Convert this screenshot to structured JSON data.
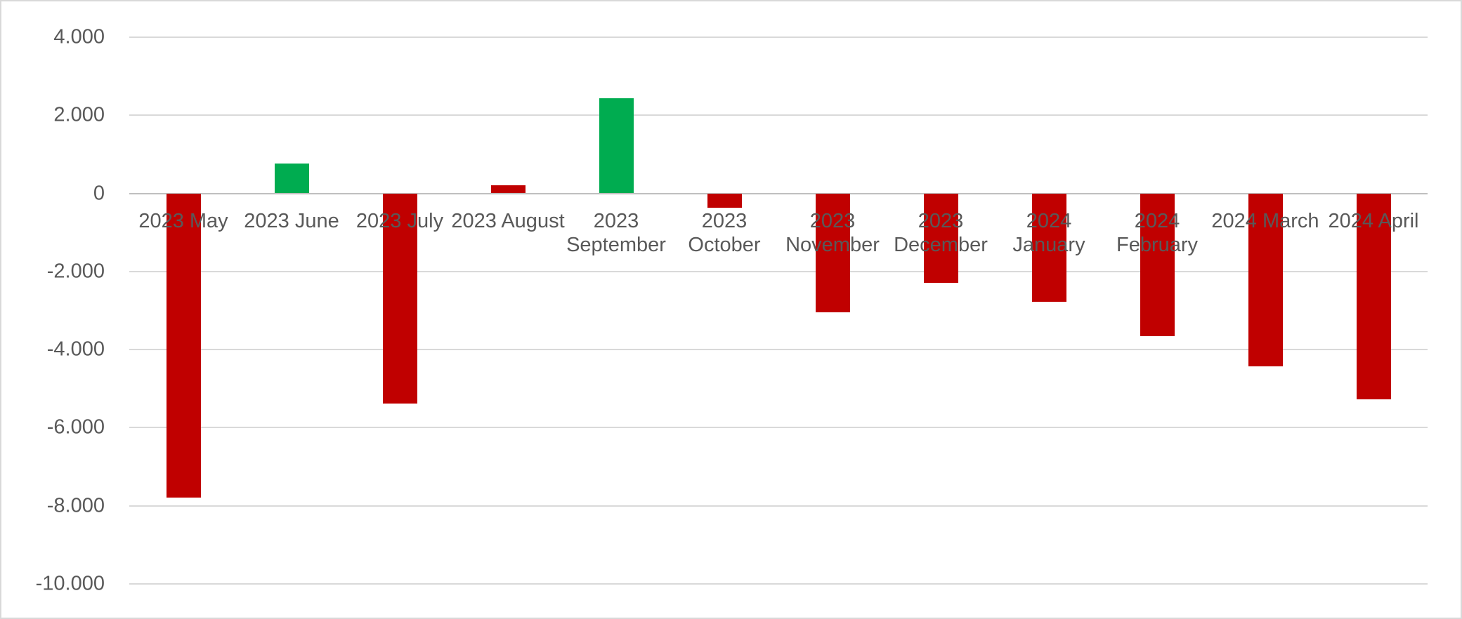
{
  "chart_data": {
    "type": "bar",
    "categories": [
      "2023 May",
      "2023 June",
      "2023 July",
      "2023 August",
      "2023 September",
      "2023 October",
      "2023 November",
      "2023 December",
      "2024 January",
      "2024 February",
      "2024 March",
      "2024 April"
    ],
    "values": [
      -7790,
      760,
      -5380,
      200,
      2440,
      -370,
      -3050,
      -2290,
      -2780,
      -3650,
      -4430,
      -5270
    ],
    "bar_colors": [
      "#C00000",
      "#00AC50",
      "#C00000",
      "#C00000",
      "#00AC50",
      "#C00000",
      "#C00000",
      "#C00000",
      "#C00000",
      "#C00000",
      "#C00000",
      "#C00000"
    ],
    "x_labels_lines": [
      [
        "2023 May"
      ],
      [
        "2023 June"
      ],
      [
        "2023 July"
      ],
      [
        "2023 August"
      ],
      [
        "2023",
        "September"
      ],
      [
        "2023",
        "October"
      ],
      [
        "2023",
        "November"
      ],
      [
        "2023",
        "December"
      ],
      [
        "2024",
        "January"
      ],
      [
        "2024",
        "February"
      ],
      [
        "2024 March"
      ],
      [
        "2024 April"
      ]
    ],
    "y_axis": {
      "ticks": [
        {
          "value": 4000,
          "label": "4.000"
        },
        {
          "value": 2000,
          "label": "2.000"
        },
        {
          "value": 0,
          "label": "0"
        },
        {
          "value": -2000,
          "label": "-2.000"
        },
        {
          "value": -4000,
          "label": "-4.000"
        },
        {
          "value": -6000,
          "label": "-6.000"
        },
        {
          "value": -8000,
          "label": "-8.000"
        },
        {
          "value": -10000,
          "label": "-10.000"
        }
      ],
      "range": [
        -10000,
        4000
      ]
    },
    "xlabel": "",
    "ylabel": "",
    "grid": true,
    "legend": "none",
    "colors": {
      "negative_bar": "#C00000",
      "positive_bar": "#00AC50",
      "gridline": "#D9D9D9",
      "zero_axis_line": "#BFBFBF",
      "label_text": "#595959",
      "background": "#FFFFFF",
      "border": "#D9D9D9"
    }
  }
}
